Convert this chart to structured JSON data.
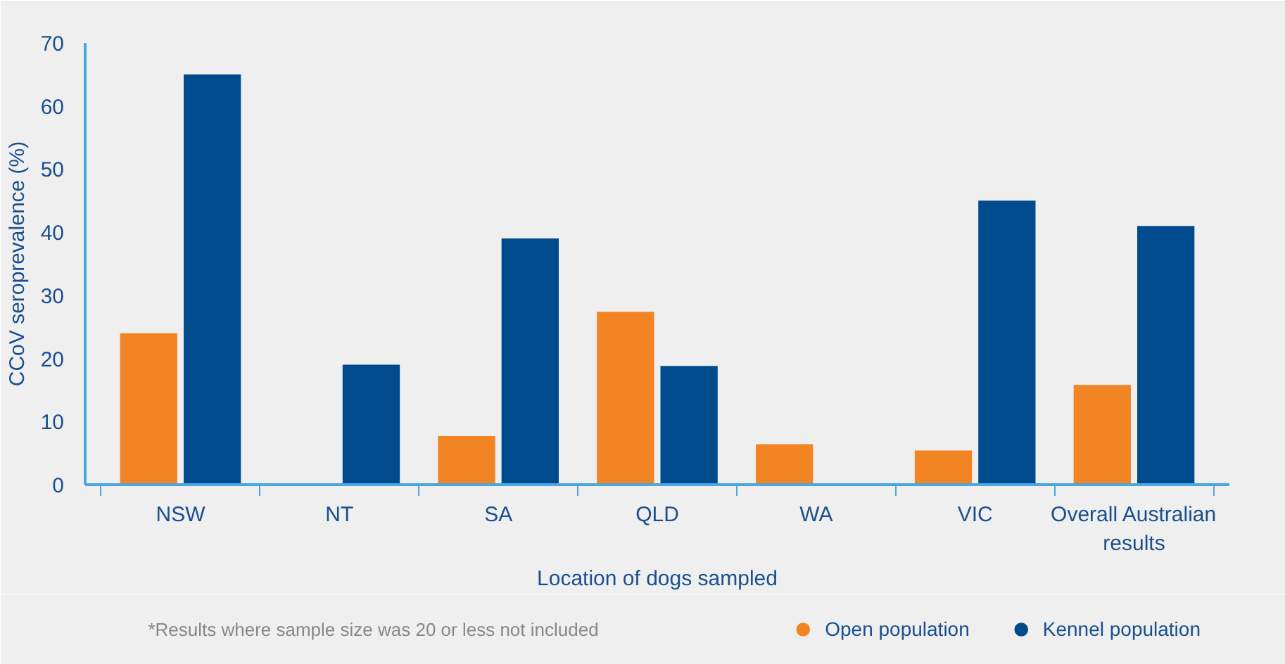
{
  "chart_data": {
    "type": "bar",
    "xlabel": "Location of dogs sampled",
    "ylabel": "CCoV seroprevalence (%)",
    "categories": [
      "NSW",
      "NT",
      "SA",
      "QLD",
      "WA",
      "VIC",
      "Overall Australian results"
    ],
    "series": [
      {
        "name": "Open population",
        "color": "#f28424",
        "values": [
          24,
          null,
          7.7,
          27.4,
          6.4,
          5.4,
          15.8
        ]
      },
      {
        "name": "Kennel population",
        "color": "#004b8d",
        "values": [
          65,
          19,
          39,
          18.8,
          null,
          45,
          41
        ]
      }
    ],
    "ylim": [
      0,
      70
    ],
    "yticks": [
      0,
      10,
      20,
      30,
      40,
      50,
      60,
      70
    ],
    "grid": false,
    "legend": "bottom right",
    "annotations": [
      "*Results where sample size was 20 or less not included"
    ]
  }
}
